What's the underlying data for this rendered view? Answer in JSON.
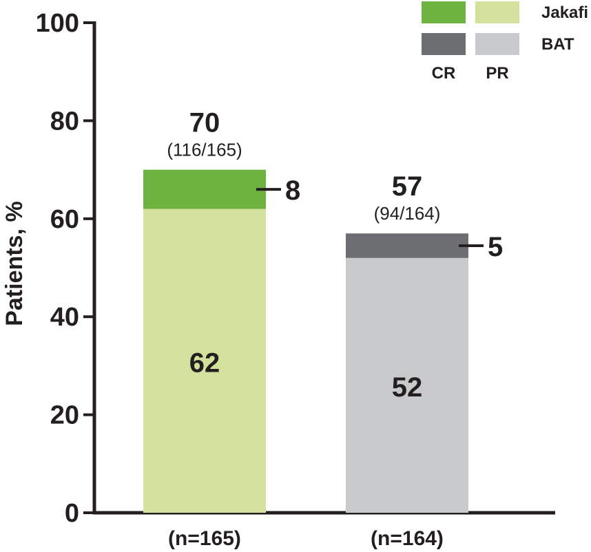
{
  "chart_data": {
    "type": "bar",
    "stacked": true,
    "ylabel": "Patients, %",
    "ylim": [
      0,
      100
    ],
    "yticks": [
      0,
      20,
      40,
      60,
      80,
      100
    ],
    "grid": false,
    "legend_placement": "top-right",
    "legend": {
      "groups": [
        "Jakafi",
        "BAT"
      ],
      "segments": [
        "CR",
        "PR"
      ]
    },
    "categories": [
      "(n=165)",
      "(n=164)"
    ],
    "bars": [
      {
        "group": "Jakafi",
        "category": "(n=165)",
        "pr": 62,
        "cr": 8,
        "total": 70,
        "total_label": "70",
        "fraction_label": "(116/165)",
        "pr_label": "62",
        "cr_label": "8",
        "colors": {
          "cr": "#6cb33f",
          "pr": "#d2e29c"
        }
      },
      {
        "group": "BAT",
        "category": "(n=164)",
        "pr": 52,
        "cr": 5,
        "total": 57,
        "total_label": "57",
        "fraction_label": "(94/164)",
        "pr_label": "52",
        "cr_label": "5",
        "colors": {
          "cr": "#6d6e71",
          "pr": "#c8c9cb"
        }
      }
    ]
  }
}
